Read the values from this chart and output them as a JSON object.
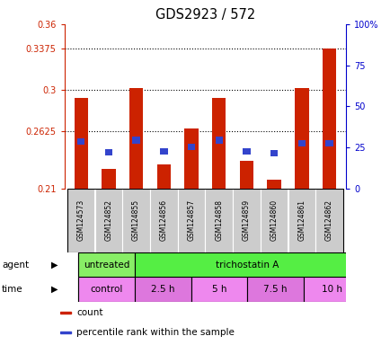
{
  "title": "GDS2923 / 572",
  "samples": [
    "GSM124573",
    "GSM124852",
    "GSM124855",
    "GSM124856",
    "GSM124857",
    "GSM124858",
    "GSM124859",
    "GSM124860",
    "GSM124861",
    "GSM124862"
  ],
  "red_values": [
    0.293,
    0.228,
    0.302,
    0.232,
    0.265,
    0.293,
    0.235,
    0.218,
    0.302,
    0.338
  ],
  "blue_values": [
    0.253,
    0.243,
    0.254,
    0.244,
    0.248,
    0.254,
    0.244,
    0.242,
    0.251,
    0.251
  ],
  "ylim": [
    0.21,
    0.36
  ],
  "yticks_left": [
    0.21,
    0.2625,
    0.3,
    0.3375,
    0.36
  ],
  "yticks_right": [
    0,
    25,
    50,
    75,
    100
  ],
  "yticks_right_labels": [
    "0",
    "25",
    "50",
    "75",
    "100%"
  ],
  "hlines": [
    0.3375,
    0.3,
    0.2625
  ],
  "bar_width": 0.5,
  "agent_labels": [
    {
      "label": "untreated",
      "start": 0,
      "end": 2,
      "color": "#88ee66"
    },
    {
      "label": "trichostatin A",
      "start": 2,
      "end": 10,
      "color": "#55ee44"
    }
  ],
  "time_labels": [
    {
      "label": "control",
      "start": 0,
      "end": 2,
      "color": "#ee88ee"
    },
    {
      "label": "2.5 h",
      "start": 2,
      "end": 4,
      "color": "#dd77dd"
    },
    {
      "label": "5 h",
      "start": 4,
      "end": 6,
      "color": "#ee88ee"
    },
    {
      "label": "7.5 h",
      "start": 6,
      "end": 8,
      "color": "#dd77dd"
    },
    {
      "label": "10 h",
      "start": 8,
      "end": 10,
      "color": "#ee88ee"
    }
  ],
  "red_color": "#cc2200",
  "blue_color": "#3344cc",
  "axis_color_left": "#cc2200",
  "axis_color_right": "#0000cc",
  "background_color": "#ffffff",
  "sample_box_color": "#cccccc",
  "label_left_text": [
    "agent",
    "time"
  ],
  "legend_items": [
    {
      "color": "#cc2200",
      "label": "count"
    },
    {
      "color": "#3344cc",
      "label": "percentile rank within the sample"
    }
  ]
}
